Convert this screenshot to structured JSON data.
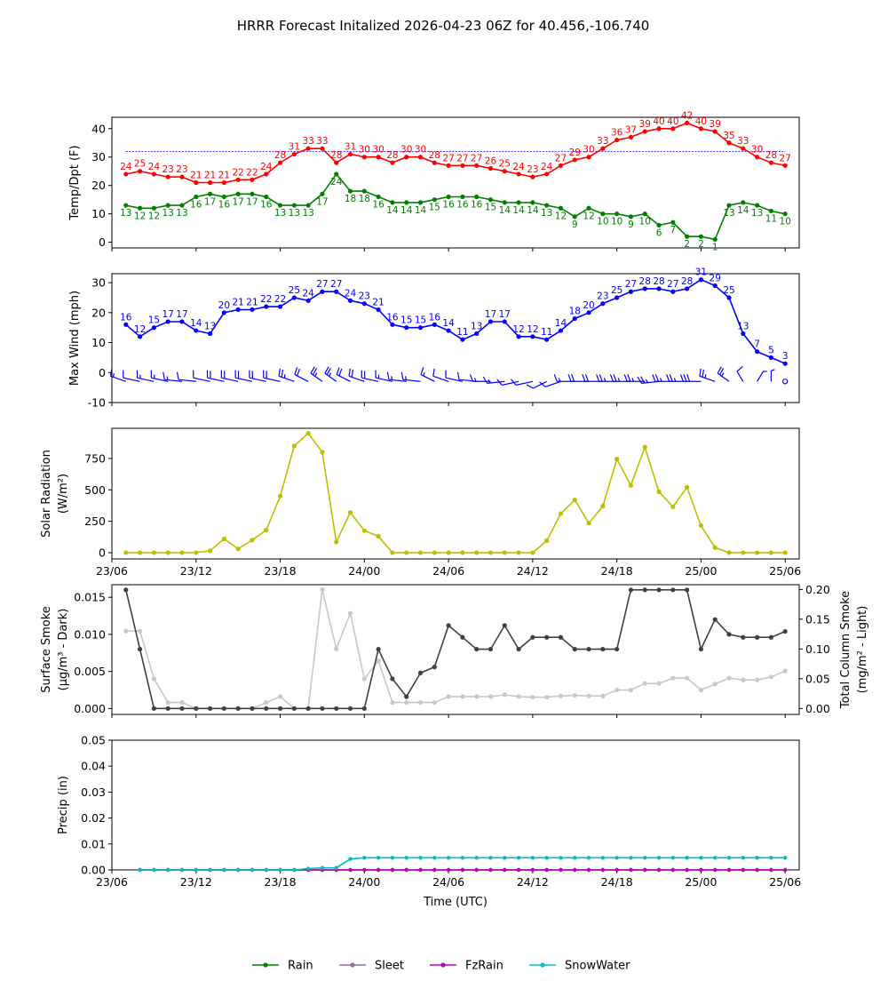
{
  "title": "HRRR Forecast Initalized 2026-04-23 06Z for 40.456,-106.740",
  "colors": {
    "temp": "#ff0000",
    "dewpoint": "#008000",
    "wind": "#0000ff",
    "solar": "#bfbf00",
    "smoke_dark": "#404040",
    "smoke_light": "#c8c8c8",
    "rain": "#008000",
    "sleet": "#8c6fa3",
    "fzrain": "#bf00bf",
    "snowwater": "#00bfbf"
  },
  "chart_data": [
    {
      "type": "line",
      "panel": "temperature",
      "ylabel": "Temp/Dpt (F)",
      "ylim": [
        -2,
        44
      ],
      "yticks": [
        0,
        10,
        20,
        30,
        40
      ],
      "reference_line": 32,
      "x_start_hour": 1,
      "series": [
        {
          "key": "temp",
          "values": [
            24,
            25,
            24,
            23,
            23,
            21,
            21,
            21,
            22,
            22,
            24,
            28,
            31,
            33,
            33,
            28,
            31,
            30,
            30,
            28,
            30,
            30,
            28,
            27,
            27,
            27,
            26,
            25,
            24,
            23,
            24,
            27,
            29,
            30,
            33,
            36,
            37,
            39,
            40,
            40,
            42,
            40,
            39,
            35,
            33,
            30,
            28,
            27
          ]
        },
        {
          "key": "dewpoint",
          "values": [
            13,
            12,
            12,
            13,
            13,
            16,
            17,
            16,
            17,
            17,
            16,
            13,
            13,
            13,
            17,
            24,
            18,
            18,
            16,
            14,
            14,
            14,
            15,
            16,
            16,
            16,
            15,
            14,
            14,
            14,
            13,
            12,
            9,
            12,
            10,
            10,
            9,
            10,
            6,
            7,
            2,
            2,
            1,
            13,
            14,
            13,
            11,
            10
          ]
        }
      ],
      "temp_labels": [
        "24",
        "25",
        "24",
        "23",
        "23",
        "21",
        "21",
        "21",
        "22",
        "22",
        "24",
        "28",
        "31",
        "33",
        "33",
        "28",
        "31",
        "30",
        "30",
        "28",
        "30",
        "30",
        "28",
        "27",
        "27",
        "27",
        "26",
        "25",
        "24",
        "23",
        "24",
        "27",
        "29",
        "30",
        "33",
        "36",
        "37",
        "39",
        "40",
        "40",
        "42",
        "40",
        "39",
        "35",
        "33",
        "30",
        "28",
        "27"
      ],
      "dewpoint_labels": [
        "13",
        "12",
        "12",
        "13",
        "13",
        "16",
        "17",
        "16",
        "17",
        "17",
        "16",
        "13",
        "13",
        "13",
        "17",
        "24",
        "18",
        "18",
        "16",
        "14",
        "14",
        "14",
        "15",
        "16",
        "16",
        "16",
        "15",
        "14",
        "14",
        "14",
        "13",
        "12",
        "9",
        "12",
        "10",
        "10",
        "9",
        "10",
        "6",
        "7",
        "2",
        "2",
        "1",
        "13",
        "14",
        "13",
        "11",
        "10"
      ]
    },
    {
      "type": "line",
      "panel": "wind",
      "ylabel": "Max Wind (mph)",
      "ylim": [
        -10,
        33
      ],
      "yticks": [
        -10,
        0,
        10,
        20,
        30
      ],
      "x_start_hour": 1,
      "values": [
        16,
        12,
        15,
        17,
        17,
        14,
        13,
        20,
        21,
        21,
        22,
        22,
        25,
        24,
        27,
        27,
        24,
        23,
        21,
        16,
        15,
        15,
        16,
        14,
        11,
        13,
        17,
        17,
        12,
        12,
        11,
        14,
        18,
        20,
        23,
        25,
        27,
        28,
        28,
        27,
        28,
        31,
        29,
        25,
        13,
        7,
        5,
        3
      ],
      "labels": [
        "16",
        "12",
        "15",
        "17",
        "17",
        "14",
        "13",
        "20",
        "21",
        "21",
        "22",
        "22",
        "25",
        "24",
        "27",
        "27",
        "24",
        "23",
        "21",
        "16",
        "15",
        "15",
        "16",
        "14",
        "11",
        "13",
        "17",
        "17",
        "12",
        "12",
        "11",
        "14",
        "18",
        "20",
        "23",
        "25",
        "27",
        "28",
        "28",
        "27",
        "28",
        "31",
        "29",
        "25",
        "13",
        "7",
        "5",
        "3"
      ]
    },
    {
      "type": "line",
      "panel": "solar",
      "ylabel": "Solar Radiation",
      "ylabel_unit": "(W/m²)",
      "ylim": [
        -50,
        990
      ],
      "yticks": [
        0,
        250,
        500,
        750
      ],
      "x_start_hour": 1,
      "values": [
        0,
        0,
        0,
        0,
        0,
        0,
        15,
        110,
        30,
        100,
        180,
        450,
        850,
        950,
        800,
        85,
        320,
        175,
        130,
        0,
        0,
        0,
        0,
        0,
        0,
        0,
        0,
        0,
        0,
        0,
        95,
        310,
        420,
        235,
        370,
        745,
        535,
        840,
        485,
        365,
        520,
        215,
        40,
        0,
        0,
        0,
        0,
        0
      ]
    },
    {
      "type": "line",
      "panel": "smoke",
      "ylabel": "Surface Smoke",
      "ylabel_unit": "(µg/m³ - Dark)",
      "ylabel_right": "Total Column Smoke",
      "ylabel_right_unit": "(mg/m² - Light)",
      "ylim": [
        -0.0008,
        0.0167
      ],
      "yticks": [
        0.0,
        0.005,
        0.01,
        0.015
      ],
      "ylim_right": [
        -0.01,
        0.208
      ],
      "yticks_right": [
        0.0,
        0.05,
        0.1,
        0.15,
        0.2
      ],
      "x_start_hour": 1,
      "series": [
        {
          "key": "smoke_dark",
          "axis": "left",
          "values": [
            0.016,
            0.008,
            0,
            0,
            0,
            0,
            0,
            0,
            0,
            0,
            0,
            0,
            0,
            0,
            0,
            0,
            0,
            0,
            0.008,
            0.004,
            0.0016,
            0.0048,
            0.0056,
            0.0112,
            0.0096,
            0.008,
            0.008,
            0.0112,
            0.008,
            0.0096,
            0.0096,
            0.0096,
            0.008,
            0.008,
            0.008,
            0.008,
            0.016,
            0.016,
            0.016,
            0.016,
            0.016,
            0.008,
            0.012,
            0.01,
            0.0096,
            0.0096,
            0.0096,
            0.0104
          ]
        },
        {
          "key": "smoke_light",
          "axis": "right",
          "values": [
            0.13,
            0.13,
            0.05,
            0.01,
            0.01,
            0,
            0,
            0,
            0,
            0,
            0.01,
            0.02,
            0,
            0,
            0.2,
            0.1,
            0.16,
            0.05,
            0.08,
            0.01,
            0.01,
            0.01,
            0.01,
            0.02,
            0.02,
            0.02,
            0.02,
            0.023,
            0.02,
            0.019,
            0.019,
            0.021,
            0.022,
            0.021,
            0.021,
            0.031,
            0.031,
            0.042,
            0.042,
            0.051,
            0.051,
            0.031,
            0.041,
            0.051,
            0.048,
            0.048,
            0.053,
            0.063
          ]
        }
      ]
    },
    {
      "type": "line",
      "panel": "precip",
      "ylabel": "Precip (in)",
      "xlabel": "Time (UTC)",
      "ylim": [
        0,
        0.05
      ],
      "yticks": [
        0.0,
        0.01,
        0.02,
        0.03,
        0.04,
        0.05
      ],
      "x_start_hour": 2,
      "series": [
        {
          "key": "rain",
          "name": "Rain",
          "values": [
            0,
            0,
            0,
            0,
            0,
            0,
            0,
            0,
            0,
            0,
            0,
            0,
            0,
            0,
            0,
            0,
            0,
            0,
            0,
            0,
            0,
            0,
            0,
            0,
            0,
            0,
            0,
            0,
            0,
            0,
            0,
            0,
            0,
            0,
            0,
            0,
            0,
            0,
            0,
            0,
            0,
            0,
            0,
            0,
            0,
            0,
            0
          ]
        },
        {
          "key": "sleet",
          "name": "Sleet",
          "values": [
            0,
            0,
            0,
            0,
            0,
            0,
            0,
            0,
            0,
            0,
            0,
            0,
            0,
            0,
            0,
            0,
            0,
            0,
            0,
            0,
            0,
            0,
            0,
            0,
            0,
            0,
            0,
            0,
            0,
            0,
            0,
            0,
            0,
            0,
            0,
            0,
            0,
            0,
            0,
            0,
            0,
            0,
            0,
            0,
            0,
            0,
            0
          ]
        },
        {
          "key": "fzrain",
          "name": "FzRain",
          "values": [
            0,
            0,
            0,
            0,
            0,
            0,
            0,
            0,
            0,
            0,
            0,
            0,
            0,
            0,
            0,
            0,
            0,
            0,
            0,
            0,
            0,
            0,
            0,
            0,
            0,
            0,
            0,
            0,
            0,
            0,
            0,
            0,
            0,
            0,
            0,
            0,
            0,
            0,
            0,
            0,
            0,
            0,
            0,
            0,
            0,
            0,
            0
          ]
        },
        {
          "key": "snowwater",
          "name": "SnowWater",
          "values": [
            0,
            0,
            0,
            0,
            0,
            0,
            0,
            0,
            0,
            0,
            0,
            0,
            0.0005,
            0.0008,
            0.0008,
            0.0042,
            0.0047,
            0.0047,
            0.0047,
            0.0047,
            0.0047,
            0.0047,
            0.0047,
            0.0047,
            0.0047,
            0.0047,
            0.0047,
            0.0047,
            0.0047,
            0.0047,
            0.0047,
            0.0047,
            0.0047,
            0.0047,
            0.0047,
            0.0047,
            0.0047,
            0.0047,
            0.0047,
            0.0047,
            0.0047,
            0.0047,
            0.0047,
            0.0047,
            0.0047,
            0.0047,
            0.0047
          ]
        }
      ]
    }
  ],
  "x_axis": {
    "range_hours": [
      0,
      49
    ],
    "ticks": [
      0,
      6,
      12,
      18,
      24,
      30,
      36,
      42,
      48
    ],
    "tick_labels": [
      "23/06",
      "23/12",
      "23/18",
      "24/00",
      "24/06",
      "24/12",
      "24/18",
      "25/00",
      "25/06"
    ]
  },
  "legend": {
    "placement": "bottom-center",
    "items": [
      {
        "key": "rain",
        "label": "Rain"
      },
      {
        "key": "sleet",
        "label": "Sleet"
      },
      {
        "key": "fzrain",
        "label": "FzRain"
      },
      {
        "key": "snowwater",
        "label": "SnowWater"
      }
    ]
  },
  "wind_barbs": {
    "direction_deg": [
      300,
      290,
      290,
      290,
      280,
      280,
      290,
      290,
      290,
      290,
      290,
      290,
      300,
      310,
      320,
      320,
      310,
      300,
      290,
      290,
      280,
      280,
      310,
      300,
      290,
      280,
      270,
      260,
      250,
      250,
      230,
      240,
      270,
      270,
      270,
      270,
      270,
      270,
      260,
      270,
      270,
      270,
      300,
      320,
      340,
      20,
      0,
      0
    ]
  }
}
